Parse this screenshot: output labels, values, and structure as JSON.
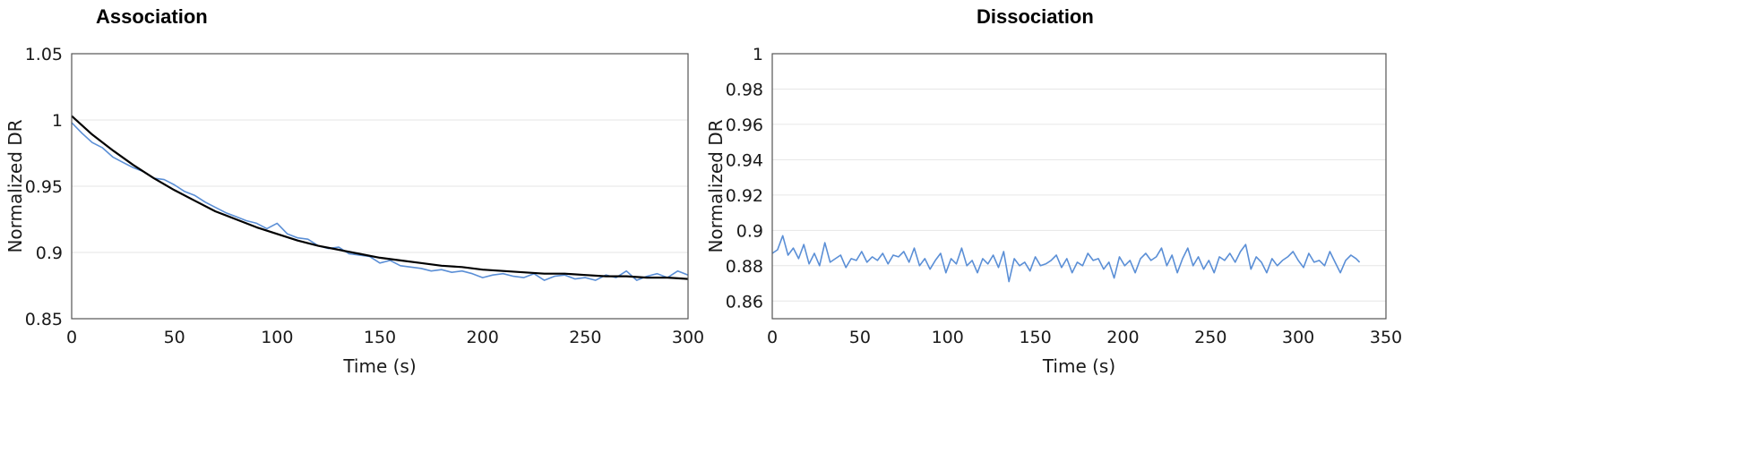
{
  "chart_data": [
    {
      "type": "line",
      "title": "Association",
      "xlabel": "Time (s)",
      "ylabel": "Normalized DR",
      "xlim": [
        0,
        300
      ],
      "ylim": [
        0.85,
        1.05
      ],
      "xticks": [
        0,
        50,
        100,
        150,
        200,
        250,
        300
      ],
      "yticks": [
        0.85,
        0.9,
        0.95,
        1,
        1.05
      ],
      "ytick_labels": [
        "0.85",
        "0.9",
        "0.95",
        "1",
        "1.05"
      ],
      "grid": true,
      "colors": {
        "data": "#5b8fd6",
        "fit": "#000000"
      },
      "series": [
        {
          "x": [
            0,
            5,
            10,
            15,
            20,
            25,
            30,
            35,
            40,
            45,
            50,
            55,
            60,
            65,
            70,
            75,
            80,
            85,
            90,
            95,
            100,
            105,
            110,
            115,
            120,
            125,
            130,
            135,
            140,
            145,
            150,
            155,
            160,
            165,
            170,
            175,
            180,
            185,
            190,
            195,
            200,
            205,
            210,
            215,
            220,
            225,
            230,
            235,
            240,
            245,
            250,
            255,
            260,
            265,
            270,
            275,
            280,
            285,
            290,
            295,
            300
          ],
          "y": [
            0.998,
            0.99,
            0.983,
            0.979,
            0.972,
            0.968,
            0.964,
            0.961,
            0.956,
            0.955,
            0.951,
            0.946,
            0.943,
            0.938,
            0.934,
            0.93,
            0.927,
            0.924,
            0.922,
            0.918,
            0.922,
            0.914,
            0.911,
            0.91,
            0.905,
            0.903,
            0.904,
            0.899,
            0.898,
            0.897,
            0.892,
            0.894,
            0.89,
            0.889,
            0.888,
            0.886,
            0.887,
            0.885,
            0.886,
            0.884,
            0.881,
            0.883,
            0.884,
            0.882,
            0.881,
            0.884,
            0.879,
            0.882,
            0.883,
            0.88,
            0.881,
            0.879,
            0.883,
            0.881,
            0.886,
            0.879,
            0.882,
            0.884,
            0.881,
            0.886,
            0.883
          ]
        },
        {
          "x": [
            0,
            10,
            20,
            30,
            40,
            50,
            60,
            70,
            80,
            90,
            100,
            110,
            120,
            130,
            140,
            150,
            160,
            170,
            180,
            190,
            200,
            210,
            220,
            230,
            240,
            250,
            260,
            270,
            280,
            290,
            300
          ],
          "y": [
            1.003,
            0.989,
            0.977,
            0.966,
            0.956,
            0.947,
            0.939,
            0.931,
            0.925,
            0.919,
            0.914,
            0.909,
            0.905,
            0.902,
            0.899,
            0.896,
            0.894,
            0.892,
            0.89,
            0.889,
            0.887,
            0.886,
            0.885,
            0.884,
            0.884,
            0.883,
            0.882,
            0.882,
            0.881,
            0.881,
            0.88
          ]
        }
      ]
    },
    {
      "type": "line",
      "title": "Dissociation",
      "xlabel": "Time (s)",
      "ylabel": "Normalized DR",
      "xlim": [
        0,
        350
      ],
      "ylim": [
        0.85,
        1
      ],
      "xticks": [
        0,
        50,
        100,
        150,
        200,
        250,
        300,
        350
      ],
      "yticks": [
        0.86,
        0.88,
        0.9,
        0.92,
        0.94,
        0.96,
        0.98,
        1
      ],
      "ytick_labels": [
        "0.86",
        "0.88",
        "0.9",
        "0.92",
        "0.94",
        "0.96",
        "0.98",
        "1"
      ],
      "grid": true,
      "colors": {
        "data": "#5b8fd6"
      },
      "series": [
        {
          "x": [
            0,
            3,
            6,
            9,
            12,
            15,
            18,
            21,
            24,
            27,
            30,
            33,
            36,
            39,
            42,
            45,
            48,
            51,
            54,
            57,
            60,
            63,
            66,
            69,
            72,
            75,
            78,
            81,
            84,
            87,
            90,
            93,
            96,
            99,
            102,
            105,
            108,
            111,
            114,
            117,
            120,
            123,
            126,
            129,
            132,
            135,
            138,
            141,
            144,
            147,
            150,
            153,
            156,
            159,
            162,
            165,
            168,
            171,
            174,
            177,
            180,
            183,
            186,
            189,
            192,
            195,
            198,
            201,
            204,
            207,
            210,
            213,
            216,
            219,
            222,
            225,
            228,
            231,
            234,
            237,
            240,
            243,
            246,
            249,
            252,
            255,
            258,
            261,
            264,
            267,
            270,
            273,
            276,
            279,
            282,
            285,
            288,
            291,
            294,
            297,
            300,
            303,
            306,
            309,
            312,
            315,
            318,
            321,
            324,
            327,
            330,
            333,
            335
          ],
          "y": [
            0.887,
            0.889,
            0.897,
            0.886,
            0.89,
            0.884,
            0.892,
            0.881,
            0.887,
            0.88,
            0.893,
            0.882,
            0.884,
            0.886,
            0.879,
            0.884,
            0.883,
            0.888,
            0.882,
            0.885,
            0.883,
            0.887,
            0.881,
            0.886,
            0.885,
            0.888,
            0.882,
            0.89,
            0.88,
            0.884,
            0.878,
            0.883,
            0.887,
            0.876,
            0.884,
            0.881,
            0.89,
            0.88,
            0.883,
            0.876,
            0.884,
            0.881,
            0.886,
            0.879,
            0.888,
            0.871,
            0.884,
            0.88,
            0.882,
            0.877,
            0.885,
            0.88,
            0.881,
            0.883,
            0.886,
            0.879,
            0.884,
            0.876,
            0.882,
            0.88,
            0.887,
            0.883,
            0.884,
            0.878,
            0.882,
            0.873,
            0.885,
            0.88,
            0.883,
            0.876,
            0.884,
            0.887,
            0.883,
            0.885,
            0.89,
            0.88,
            0.886,
            0.876,
            0.884,
            0.89,
            0.88,
            0.885,
            0.878,
            0.883,
            0.876,
            0.885,
            0.883,
            0.887,
            0.882,
            0.888,
            0.892,
            0.878,
            0.885,
            0.882,
            0.876,
            0.884,
            0.88,
            0.883,
            0.885,
            0.888,
            0.883,
            0.879,
            0.887,
            0.882,
            0.883,
            0.88,
            0.888,
            0.882,
            0.876,
            0.883,
            0.886,
            0.884,
            0.882
          ]
        }
      ]
    }
  ]
}
